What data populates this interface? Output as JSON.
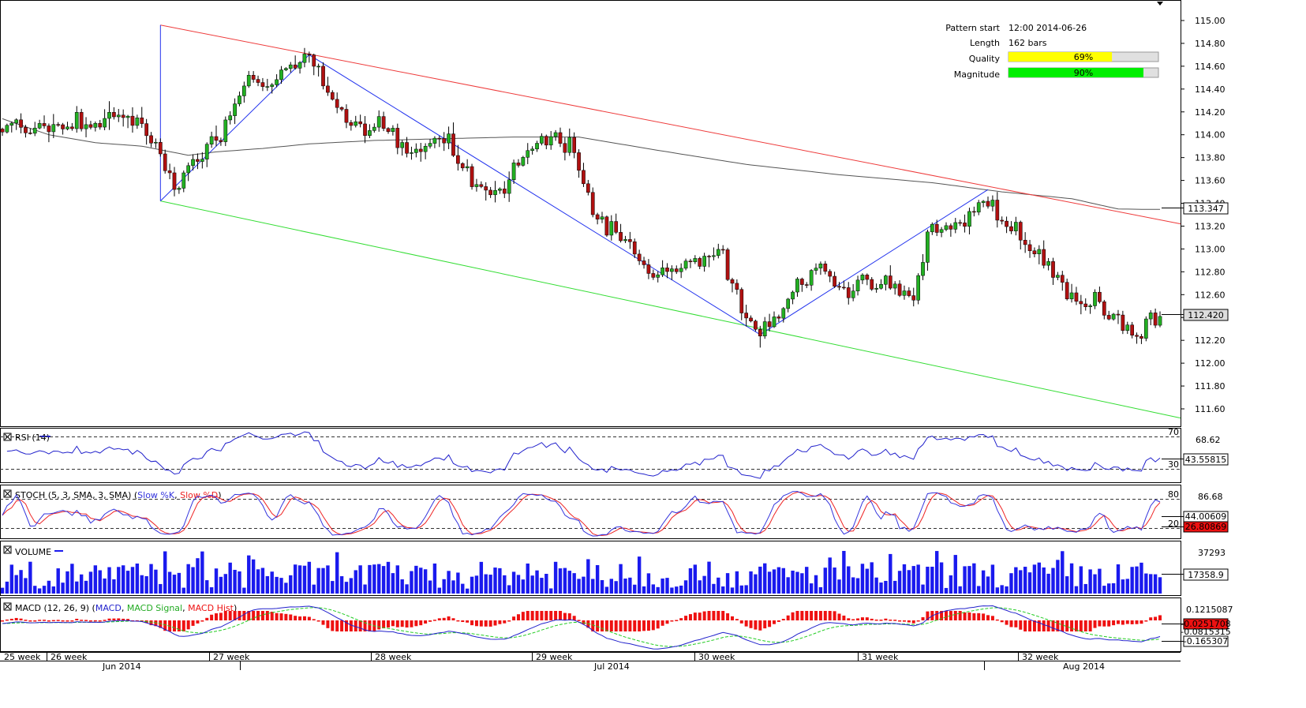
{
  "colors": {
    "bull": "#22b022",
    "bear": "#b01010",
    "wick": "#000000",
    "resistance": "#ee3b3b",
    "support": "#33dd33",
    "pattern": "#2233ee",
    "ma": "#555555",
    "rsi": "#2222cc",
    "stoch_k": "#3333dd",
    "stoch_d": "#ee2222",
    "volume": "#1a1aee",
    "macd": "#2222cc",
    "macd_signal": "#22cc22",
    "macd_hist": "#ee1111",
    "quality_bar": "#ffff00",
    "magnitude_bar": "#00ee00"
  },
  "pattern_info": {
    "start_label": "Pattern start",
    "start_value": "12:00 2014-06-26",
    "length_label": "Length",
    "length_value": "162 bars",
    "quality_label": "Quality",
    "quality_value": "69%",
    "quality_fraction": 0.69,
    "magnitude_label": "Magnitude",
    "magnitude_value": "90%",
    "magnitude_fraction": 0.9
  },
  "panels": {
    "rsi": {
      "title": "RSI (14)",
      "level_high": "70",
      "level_low": "30",
      "max_label": "68.62",
      "current": "43.55815"
    },
    "stoch": {
      "title_prefix": "STOCH (5, 3, SMA, 3, SMA)",
      "k_label": "Slow %K",
      "d_label": "Slow %D",
      "level_high": "80",
      "level_low": "20",
      "max_label": "86.68",
      "current_k": "44.00609",
      "current_d": "26.80869"
    },
    "volume": {
      "title": "VOLUME",
      "max_label": "37293",
      "current": "17358.9"
    },
    "macd": {
      "title_prefix": "MACD (12, 26, 9)",
      "macd_label": "MACD",
      "signal_label": "MACD Signal",
      "hist_label": "MACD Hist",
      "max_label": "0.1215087",
      "current_hist": "-0.0251708",
      "obscured": "-0.0815315",
      "current_macd": "-0.165307"
    }
  },
  "chart_data": {
    "type": "candlestick",
    "ylim": [
      111.45,
      115.1
    ],
    "y_ticks": [
      "115.00",
      "114.80",
      "114.60",
      "114.40",
      "114.20",
      "114.00",
      "113.80",
      "113.60",
      "113.40",
      "113.20",
      "113.00",
      "112.80",
      "112.60",
      "112.40",
      "112.20",
      "112.00",
      "111.80",
      "111.60"
    ],
    "current_price": "113.347",
    "last_price": "112.420",
    "week_labels": [
      "25 week",
      "26 week",
      "27 week",
      "28 week",
      "29 week",
      "30 week",
      "31 week",
      "32 week"
    ],
    "month_labels": [
      "Jun 2014",
      "Jul 2014",
      "Aug 2014"
    ],
    "n_bars": 250,
    "resistance_line": {
      "from": [
        34,
        114.96
      ],
      "to": [
        250,
        113.22
      ]
    },
    "support_line": {
      "from": [
        34,
        113.42
      ],
      "to": [
        250,
        111.52
      ]
    },
    "pattern_path": [
      [
        34,
        113.42
      ],
      [
        66,
        114.7
      ],
      [
        163,
        112.25
      ],
      [
        212,
        113.52
      ]
    ],
    "candle_path": [
      [
        0,
        114.05
      ],
      [
        12,
        114.05
      ],
      [
        20,
        114.12
      ],
      [
        28,
        114.15
      ],
      [
        33,
        113.9
      ],
      [
        37,
        113.55
      ],
      [
        40,
        113.7
      ],
      [
        47,
        114.0
      ],
      [
        53,
        114.45
      ],
      [
        60,
        114.5
      ],
      [
        66,
        114.68
      ],
      [
        70,
        114.38
      ],
      [
        74,
        114.1
      ],
      [
        82,
        114.05
      ],
      [
        88,
        113.85
      ],
      [
        96,
        113.95
      ],
      [
        102,
        113.55
      ],
      [
        108,
        113.52
      ],
      [
        114,
        113.95
      ],
      [
        122,
        113.95
      ],
      [
        127,
        113.3
      ],
      [
        134,
        113.05
      ],
      [
        140,
        112.75
      ],
      [
        145,
        112.85
      ],
      [
        155,
        112.95
      ],
      [
        160,
        112.4
      ],
      [
        164,
        112.3
      ],
      [
        170,
        112.6
      ],
      [
        176,
        112.85
      ],
      [
        180,
        112.6
      ],
      [
        188,
        112.7
      ],
      [
        196,
        112.6
      ],
      [
        200,
        113.25
      ],
      [
        205,
        113.15
      ],
      [
        211,
        113.45
      ],
      [
        216,
        113.2
      ],
      [
        220,
        113.1
      ],
      [
        226,
        112.8
      ],
      [
        232,
        112.5
      ],
      [
        236,
        112.55
      ],
      [
        240,
        112.4
      ],
      [
        244,
        112.2
      ],
      [
        246,
        112.42
      ]
    ],
    "ma_path": [
      [
        0,
        114.14
      ],
      [
        10,
        114.0
      ],
      [
        20,
        113.93
      ],
      [
        30,
        113.9
      ],
      [
        40,
        113.82
      ],
      [
        46,
        113.85
      ],
      [
        56,
        113.88
      ],
      [
        66,
        113.92
      ],
      [
        80,
        113.95
      ],
      [
        100,
        113.97
      ],
      [
        110,
        113.98
      ],
      [
        124,
        113.98
      ],
      [
        140,
        113.87
      ],
      [
        160,
        113.74
      ],
      [
        180,
        113.65
      ],
      [
        200,
        113.58
      ],
      [
        215,
        113.5
      ],
      [
        230,
        113.44
      ],
      [
        240,
        113.35
      ],
      [
        245,
        113.347
      ]
    ],
    "volume_max": 37293
  }
}
